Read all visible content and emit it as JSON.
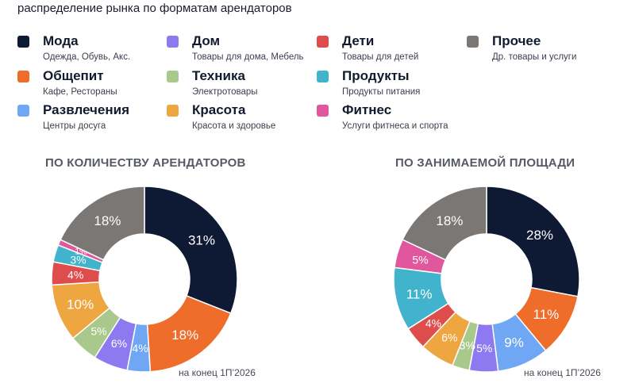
{
  "subtitle": "распределение рынка по форматам арендаторов",
  "legend": [
    {
      "name": "Мода",
      "desc": "Одежда, Обувь, Акс.",
      "color": "#0e1a34"
    },
    {
      "name": "Дом",
      "desc": "Товары для дома, Мебель",
      "color": "#8e7af0"
    },
    {
      "name": "Дети",
      "desc": "Товары для детей",
      "color": "#de4c4c"
    },
    {
      "name": "Прочее",
      "desc": "Др. товары и услуги",
      "color": "#7b7775"
    },
    {
      "name": "Общепит",
      "desc": "Кафе, Рестораны",
      "color": "#ef6d2b"
    },
    {
      "name": "Техника",
      "desc": "Электротовары",
      "color": "#a9c98c"
    },
    {
      "name": "Продукты",
      "desc": "Продукты питания",
      "color": "#41b3cc"
    },
    {
      "name": "Развлечения",
      "desc": "Центры досуга",
      "color": "#70a7f4"
    },
    {
      "name": "Красота",
      "desc": "Красота и здоровье",
      "color": "#eda640"
    },
    {
      "name": "Фитнес",
      "desc": "Услуги фитнеса и спорта",
      "color": "#e0579d"
    }
  ],
  "chart_data": [
    {
      "type": "pie",
      "title": "ПО КОЛИЧЕСТВУ АРЕНДАТОРОВ",
      "note": "на конец 1П’2026",
      "slices": [
        {
          "category": "Мода",
          "value": 31,
          "label": "31%",
          "color": "#0e1a34",
          "text_color": "#ffffff"
        },
        {
          "category": "Общепит",
          "value": 18,
          "label": "18%",
          "color": "#ef6d2b",
          "text_color": "#ffffff"
        },
        {
          "category": "Развлечения",
          "value": 4,
          "label": "4%",
          "color": "#70a7f4",
          "text_color": "#ffffff"
        },
        {
          "category": "Дом",
          "value": 6,
          "label": "6%",
          "color": "#8e7af0",
          "text_color": "#ffffff"
        },
        {
          "category": "Техника",
          "value": 5,
          "label": "5%",
          "color": "#a9c98c",
          "text_color": "#ffffff"
        },
        {
          "category": "Красота",
          "value": 10,
          "label": "10%",
          "color": "#eda640",
          "text_color": "#ffffff"
        },
        {
          "category": "Дети",
          "value": 4,
          "label": "4%",
          "color": "#de4c4c",
          "text_color": "#ffffff"
        },
        {
          "category": "Продукты",
          "value": 3,
          "label": "3%",
          "color": "#41b3cc",
          "text_color": "#ffffff"
        },
        {
          "category": "Фитнес",
          "value": 1,
          "label": "1%",
          "color": "#e0579d",
          "text_color": "#ffffff"
        },
        {
          "category": "Прочее",
          "value": 18,
          "label": "18%",
          "color": "#7b7775",
          "text_color": "#ffffff"
        }
      ]
    },
    {
      "type": "pie",
      "title": "ПО ЗАНИМАЕМОЙ ПЛОЩАДИ",
      "note": "на конец 1П’2026",
      "slices": [
        {
          "category": "Мода",
          "value": 28,
          "label": "28%",
          "color": "#0e1a34",
          "text_color": "#ffffff"
        },
        {
          "category": "Общепит",
          "value": 11,
          "label": "11%",
          "color": "#ef6d2b",
          "text_color": "#ffffff"
        },
        {
          "category": "Развлечения",
          "value": 9,
          "label": "9%",
          "color": "#70a7f4",
          "text_color": "#ffffff"
        },
        {
          "category": "Дом",
          "value": 5,
          "label": "5%",
          "color": "#8e7af0",
          "text_color": "#ffffff"
        },
        {
          "category": "Техника",
          "value": 3,
          "label": "3%",
          "color": "#a9c98c",
          "text_color": "#ffffff"
        },
        {
          "category": "Красота",
          "value": 6,
          "label": "6%",
          "color": "#eda640",
          "text_color": "#ffffff"
        },
        {
          "category": "Дети",
          "value": 4,
          "label": "4%",
          "color": "#de4c4c",
          "text_color": "#ffffff"
        },
        {
          "category": "Продукты",
          "value": 11,
          "label": "11%",
          "color": "#41b3cc",
          "text_color": "#ffffff"
        },
        {
          "category": "Фитнес",
          "value": 5,
          "label": "5%",
          "color": "#e0579d",
          "text_color": "#ffffff"
        },
        {
          "category": "Прочее",
          "value": 18,
          "label": "18%",
          "color": "#7b7775",
          "text_color": "#ffffff"
        }
      ]
    }
  ]
}
